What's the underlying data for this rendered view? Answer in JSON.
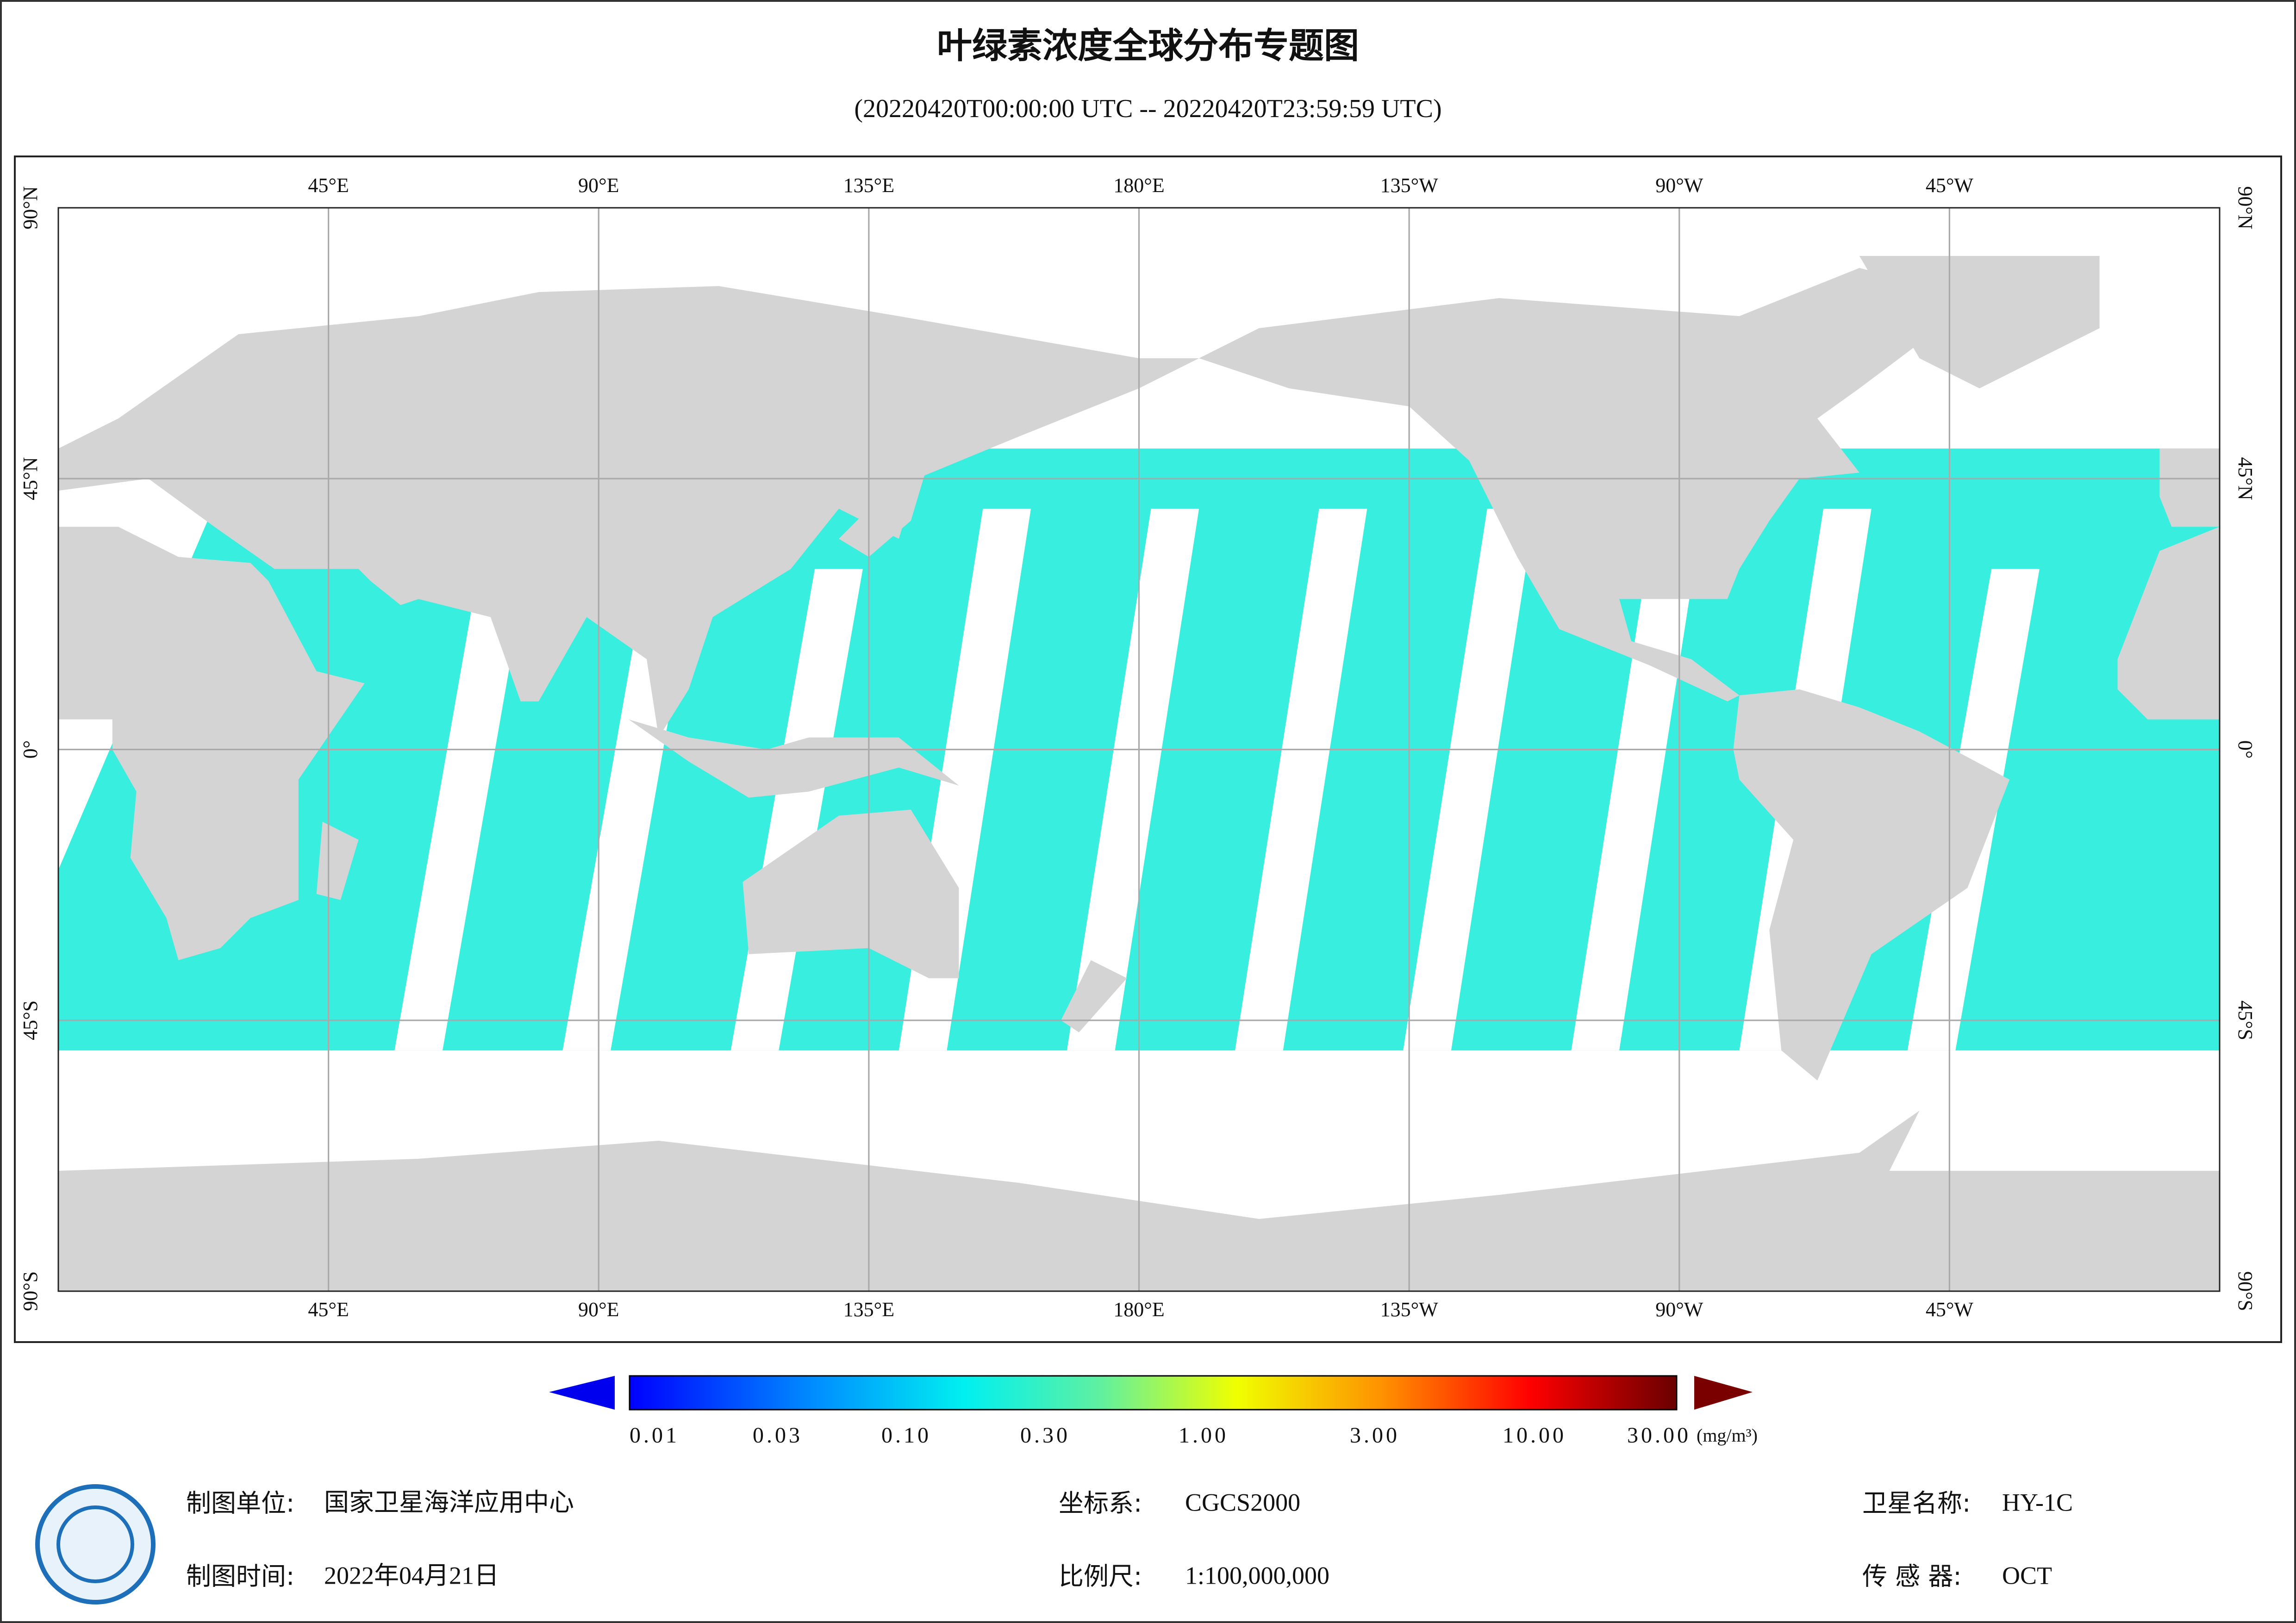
{
  "title": "叶绿素浓度全球分布专题图",
  "subtitle": "(20220420T00:00:00 UTC -- 20220420T23:59:59 UTC)",
  "map": {
    "lon_labels": [
      "45°E",
      "90°E",
      "135°E",
      "180°E",
      "135°W",
      "90°W",
      "45°W"
    ],
    "lat_labels": [
      "90°N",
      "45°N",
      "0°",
      "45°S",
      "90°S"
    ]
  },
  "colorbar": {
    "labels": [
      "0.01",
      "0.03",
      "0.10",
      "0.30",
      "1.00",
      "3.00",
      "10.00",
      "30.00"
    ],
    "unit": "(mg/m³)"
  },
  "footer": {
    "left": [
      {
        "label": "制图单位:",
        "value": "国家卫星海洋应用中心"
      },
      {
        "label": "制图时间:",
        "value": "2022年04月21日"
      }
    ],
    "middle": [
      {
        "label": "坐标系:",
        "value": "CGCS2000"
      },
      {
        "label": "比例尺:",
        "value": "1:100,000,000"
      }
    ],
    "right": [
      {
        "label": "卫星名称:",
        "value": "HY-1C"
      },
      {
        "label": "传 感 器:",
        "value": "OCT"
      }
    ]
  }
}
